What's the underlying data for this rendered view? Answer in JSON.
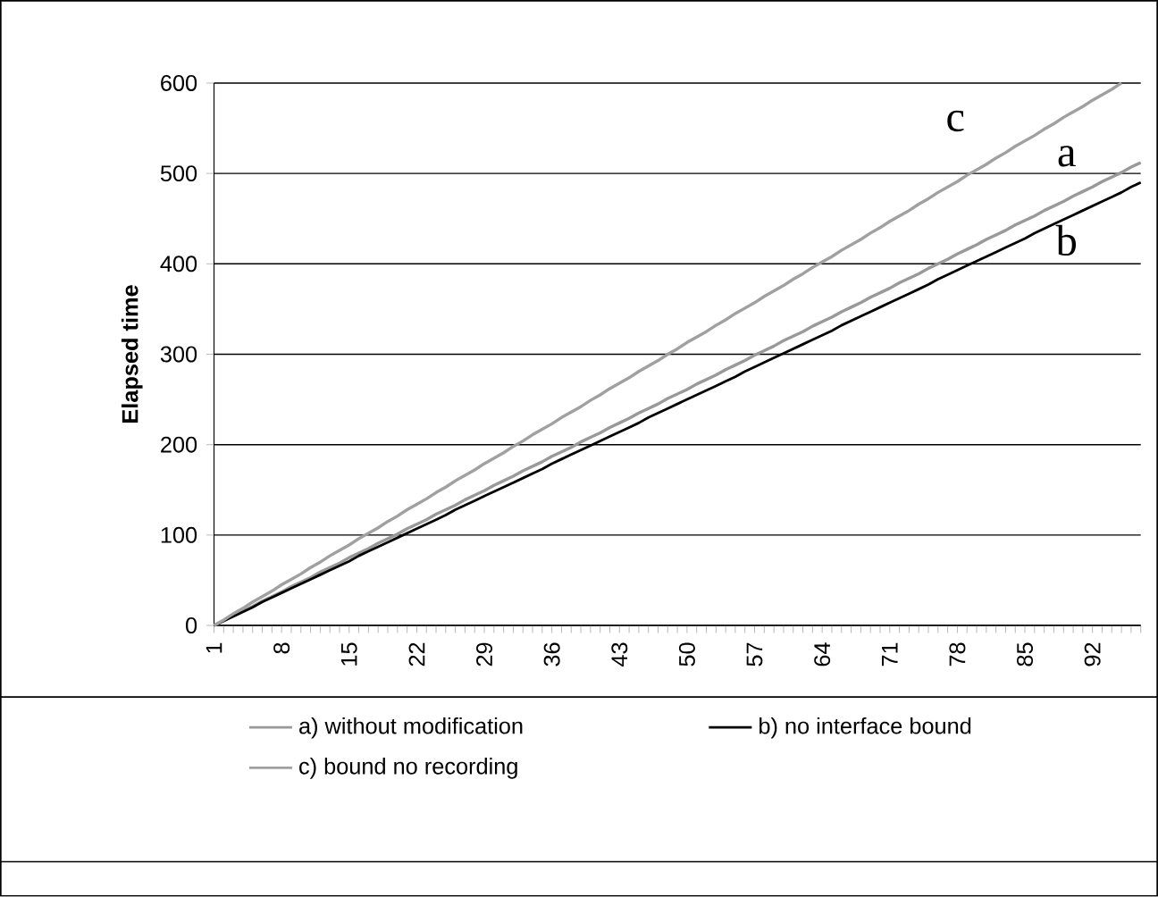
{
  "chart_data": {
    "type": "line",
    "ylabel": "**Elapsed time**",
    "categories": [
      "1",
      null,
      null,
      null,
      null,
      null,
      null,
      "8",
      null,
      null,
      null,
      null,
      null,
      null,
      "15",
      null,
      null,
      null,
      null,
      null,
      null,
      "22",
      null,
      null,
      null,
      null,
      null,
      null,
      "29",
      null,
      null,
      null,
      null,
      null,
      null,
      "36",
      null,
      null,
      null,
      null,
      null,
      null,
      "43",
      null,
      null,
      null,
      null,
      null,
      null,
      "50",
      null,
      null,
      null,
      null,
      null,
      null,
      "57",
      null,
      null,
      null,
      null,
      null,
      null,
      "64",
      null,
      null,
      null,
      null,
      null,
      null,
      "71",
      null,
      null,
      null,
      null,
      null,
      null,
      "78",
      null,
      null,
      null,
      null,
      null,
      null,
      "85",
      null,
      null,
      null,
      null,
      null,
      null,
      "92",
      null,
      null,
      null,
      null,
      null
    ],
    "series": [
      {
        "name": "a) without modification",
        "color": "#999999",
        "values": [
          0,
          5,
          11,
          16,
          21,
          27,
          32,
          37,
          43,
          48,
          53,
          59,
          64,
          69,
          75,
          80,
          85,
          91,
          96,
          101,
          107,
          112,
          117,
          123,
          128,
          133,
          139,
          144,
          149,
          155,
          160,
          165,
          171,
          176,
          181,
          187,
          192,
          197,
          203,
          208,
          213,
          219,
          224,
          229,
          235,
          240,
          245,
          251,
          256,
          261,
          267,
          272,
          277,
          283,
          288,
          293,
          299,
          304,
          309,
          315,
          320,
          325,
          331,
          336,
          341,
          347,
          352,
          357,
          363,
          368,
          373,
          379,
          384,
          389,
          395,
          400,
          405,
          411,
          416,
          421,
          427,
          432,
          437,
          443,
          448,
          453,
          459,
          464,
          469,
          475,
          480,
          485,
          491,
          496,
          501,
          507,
          512
        ]
      },
      {
        "name": "b) no interface bound",
        "color": "#000000",
        "values": [
          0,
          5,
          10,
          15,
          20,
          26,
          31,
          36,
          41,
          46,
          51,
          56,
          61,
          66,
          71,
          77,
          82,
          87,
          92,
          97,
          102,
          107,
          112,
          117,
          122,
          128,
          133,
          138,
          143,
          148,
          153,
          158,
          163,
          168,
          173,
          179,
          184,
          189,
          194,
          199,
          204,
          209,
          214,
          219,
          224,
          230,
          235,
          240,
          245,
          250,
          255,
          260,
          265,
          270,
          275,
          281,
          286,
          291,
          296,
          301,
          306,
          311,
          316,
          321,
          326,
          332,
          337,
          342,
          347,
          352,
          357,
          362,
          367,
          372,
          377,
          383,
          388,
          393,
          398,
          403,
          408,
          413,
          418,
          423,
          428,
          434,
          439,
          444,
          449,
          454,
          459,
          464,
          469,
          474,
          479,
          485,
          490
        ]
      },
      {
        "name": "c) bound no recording",
        "color": "#a0a0a0",
        "values": [
          0,
          6,
          13,
          19,
          26,
          32,
          38,
          45,
          51,
          57,
          64,
          70,
          77,
          83,
          89,
          96,
          102,
          108,
          115,
          121,
          128,
          134,
          140,
          147,
          153,
          160,
          166,
          172,
          179,
          185,
          191,
          198,
          204,
          211,
          217,
          223,
          230,
          236,
          242,
          249,
          255,
          262,
          268,
          274,
          281,
          287,
          293,
          300,
          306,
          313,
          319,
          325,
          332,
          338,
          345,
          351,
          357,
          364,
          370,
          376,
          383,
          389,
          396,
          402,
          408,
          415,
          421,
          427,
          434,
          440,
          447,
          453,
          459,
          466,
          472,
          479,
          485,
          491,
          498,
          504,
          510,
          517,
          523,
          530,
          536,
          542,
          549,
          555,
          562,
          568,
          574,
          581,
          587,
          593,
          600,
          null,
          null
        ]
      }
    ],
    "ylim": [
      0,
      600
    ],
    "yticks": [
      0,
      100,
      200,
      300,
      400,
      500,
      600
    ],
    "grid": "y",
    "legend": "bottom",
    "marker": "none",
    "line_style": "solid",
    "annotations": [
      "c",
      "a",
      "b"
    ]
  }
}
